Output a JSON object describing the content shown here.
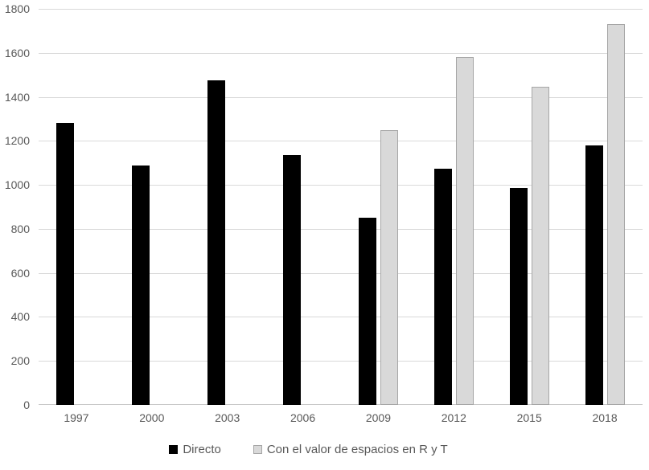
{
  "chart_data": {
    "type": "bar",
    "title": "",
    "xlabel": "",
    "ylabel": "",
    "categories": [
      "1997",
      "2000",
      "2003",
      "2006",
      "2009",
      "2012",
      "2015",
      "2018"
    ],
    "series": [
      {
        "name": "Directo",
        "color": "#000000",
        "border_color": "#000000",
        "values": [
          1280,
          1090,
          1475,
          1135,
          850,
          1075,
          985,
          1180
        ]
      },
      {
        "name": "Con el valor de espacios en R y T",
        "color": "#d9d9d9",
        "border_color": "#a6a6a6",
        "values": [
          null,
          null,
          null,
          null,
          1250,
          1580,
          1445,
          1730
        ]
      }
    ],
    "ylim": [
      0,
      1800
    ],
    "yticks": [
      0,
      200,
      400,
      600,
      800,
      1000,
      1200,
      1400,
      1600,
      1800
    ],
    "grid": true,
    "gridline_color": "#d9d9d9",
    "axis_line_color": "#c8c8c8",
    "tick_label_color": "#595959",
    "legend_text_color": "#595959",
    "legend_position": "bottom",
    "background": "#ffffff"
  }
}
